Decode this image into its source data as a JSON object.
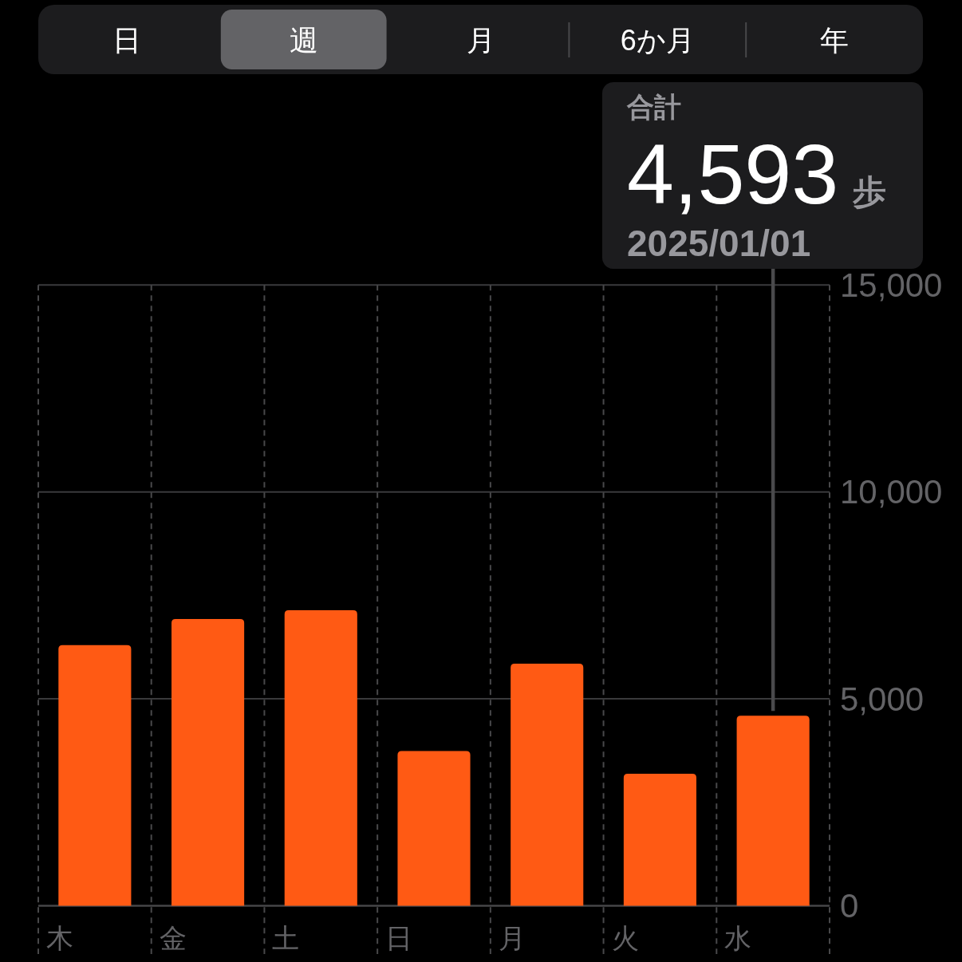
{
  "chart_data": {
    "type": "bar",
    "categories": [
      "木",
      "金",
      "土",
      "日",
      "月",
      "火",
      "水"
    ],
    "values": [
      6300,
      6930,
      7140,
      3740,
      5850,
      3190,
      4593
    ],
    "color": "#ff5a14",
    "ylim": [
      0,
      15000
    ],
    "yticks": [
      0,
      {
        "value": 5000,
        "label": "5,000"
      },
      {
        "value": 10000,
        "label": "10,000"
      },
      {
        "value": 15000,
        "label": "15,000"
      }
    ],
    "grid": true,
    "annotations": [
      "日",
      "週",
      "月",
      "6か月",
      "年",
      "合計",
      "4,593",
      "歩",
      "2025/01/01"
    ]
  }
}
